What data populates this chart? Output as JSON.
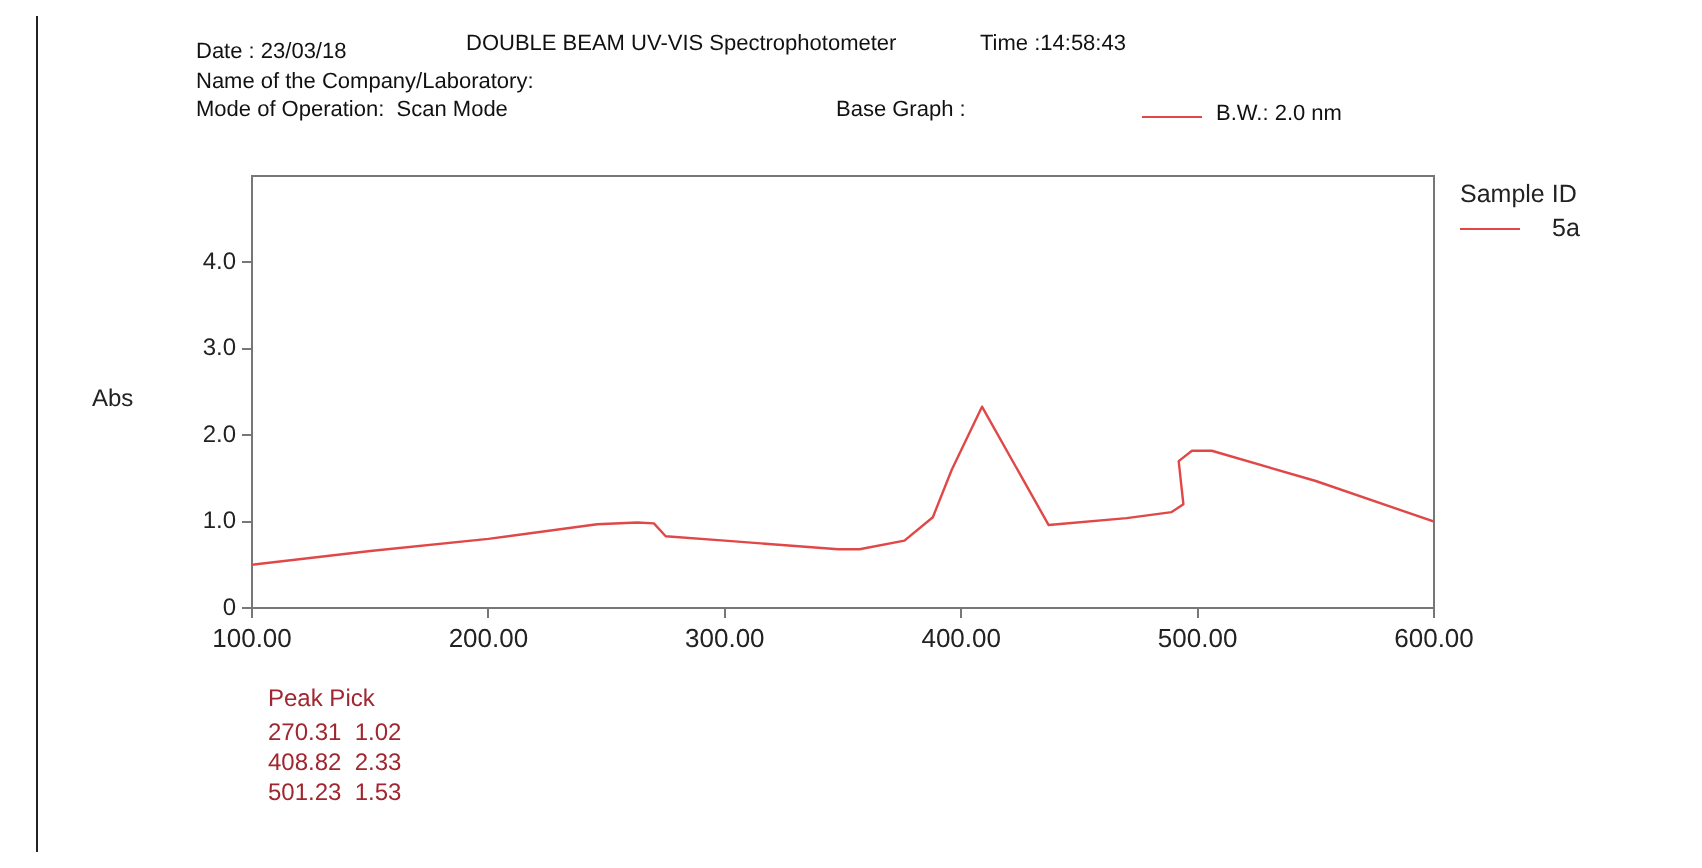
{
  "chart_data": {
    "type": "line",
    "ylabel": "Abs",
    "legend_title": "Sample ID",
    "legend": "top right",
    "marker": "none",
    "line_style": "solid",
    "grid": false,
    "annotations": [
      "Date : 23/03/18",
      "DOUBLE BEAM UV-VIS Spectrophotometer",
      "Time :14:58:43",
      "Name of the Company/Laboratory:",
      "Mode of Operation:  Scan Mode",
      "Base Graph :",
      "B.W.: 2.0 nm",
      "Peak Pick",
      "270.31  1.02",
      "408.82  2.33",
      "501.23  1.53"
    ],
    "xlim": [
      100,
      600
    ],
    "xticks": [
      {
        "value": 100,
        "label": "100.00"
      },
      {
        "value": 200,
        "label": "200.00"
      },
      {
        "value": 300,
        "label": "300.00"
      },
      {
        "value": 400,
        "label": "400.00"
      },
      {
        "value": 500,
        "label": "500.00"
      },
      {
        "value": 600,
        "label": "600.00"
      }
    ],
    "ylim": [
      0,
      5
    ],
    "yticks": [
      0,
      {
        "value": 1,
        "label": "1.0"
      },
      {
        "value": 2,
        "label": "2.0"
      },
      {
        "value": 3,
        "label": "3.0"
      },
      {
        "value": 4,
        "label": "4.0"
      }
    ],
    "series": [
      {
        "name": "5a",
        "color": "#e04848",
        "x": [
          100,
          150,
          200,
          246,
          263,
          270,
          275,
          300,
          348,
          357,
          376,
          388,
          396,
          408.8,
          437,
          470,
          489,
          494,
          492,
          497.6,
          506,
          550,
          600
        ],
        "values": [
          0.5,
          0.66,
          0.8,
          0.97,
          0.99,
          0.98,
          0.83,
          0.78,
          0.68,
          0.68,
          0.78,
          1.05,
          1.6,
          2.33,
          0.96,
          1.04,
          1.11,
          1.2,
          1.7,
          1.82,
          1.82,
          1.47,
          1.0
        ]
      }
    ]
  }
}
